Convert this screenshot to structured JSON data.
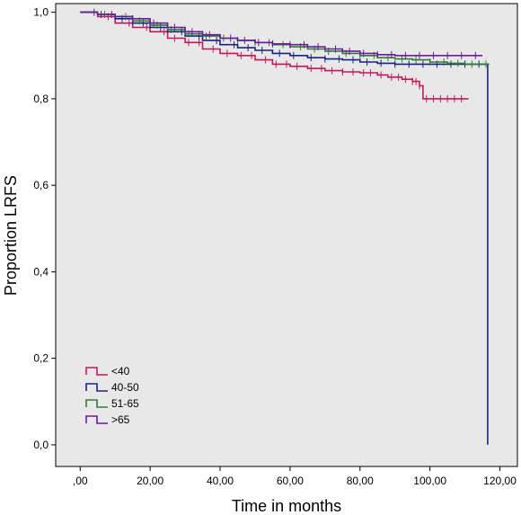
{
  "chart_data": {
    "type": "line",
    "title": "",
    "xlabel": "Time in months",
    "ylabel": "Proportion LRFS",
    "xlim": [
      -7,
      125
    ],
    "ylim": [
      -0.05,
      1.02
    ],
    "x_ticks": [
      0,
      20,
      40,
      60,
      80,
      100,
      120
    ],
    "x_tick_labels": [
      ",00",
      "20,00",
      "40,00",
      "60,00",
      "80,00",
      "100,00",
      "120,00"
    ],
    "y_ticks": [
      0,
      0.2,
      0.4,
      0.6,
      0.8,
      1.0
    ],
    "y_tick_labels": [
      "0,0",
      "0,2",
      "0,4",
      "0,6",
      "0,8",
      "1,0"
    ],
    "grid": false,
    "background": "#e8e8e8",
    "legend_position": "bottom-left",
    "series": [
      {
        "name": "<40",
        "color": "#c2185b",
        "x": [
          0,
          5,
          10,
          15,
          20,
          25,
          30,
          35,
          40,
          45,
          50,
          55,
          60,
          65,
          70,
          75,
          80,
          85,
          88,
          92,
          95,
          97,
          98,
          100,
          102,
          105,
          108,
          111
        ],
        "y": [
          1.0,
          0.99,
          0.975,
          0.965,
          0.955,
          0.94,
          0.93,
          0.915,
          0.905,
          0.9,
          0.89,
          0.88,
          0.875,
          0.87,
          0.865,
          0.862,
          0.86,
          0.855,
          0.85,
          0.845,
          0.84,
          0.83,
          0.8,
          0.8,
          0.8,
          0.8,
          0.8,
          0.8
        ],
        "censor_x": [
          8,
          14,
          19,
          24,
          27,
          31,
          34,
          38,
          42,
          46,
          49,
          53,
          56,
          59,
          62,
          66,
          69,
          72,
          75,
          78,
          81,
          83,
          86,
          89,
          91,
          93,
          95,
          96,
          97,
          99,
          101,
          103,
          105,
          107,
          109
        ]
      },
      {
        "name": "40-50",
        "color": "#1a237e",
        "x": [
          0,
          5,
          10,
          15,
          20,
          25,
          30,
          35,
          40,
          45,
          50,
          55,
          60,
          65,
          70,
          75,
          80,
          85,
          90,
          95,
          100,
          105,
          110,
          116,
          116.5
        ],
        "y": [
          1.0,
          0.995,
          0.985,
          0.975,
          0.965,
          0.955,
          0.945,
          0.935,
          0.925,
          0.918,
          0.912,
          0.905,
          0.9,
          0.895,
          0.892,
          0.89,
          0.885,
          0.882,
          0.88,
          0.88,
          0.88,
          0.88,
          0.88,
          0.88,
          0.0
        ],
        "censor_x": [
          6,
          12,
          18,
          23,
          29,
          34,
          39,
          44,
          48,
          52,
          57,
          61,
          66,
          70,
          74,
          78,
          82,
          86,
          90,
          94,
          98,
          102,
          106,
          110,
          114
        ]
      },
      {
        "name": "51-65",
        "color": "#2e7d32",
        "x": [
          0,
          5,
          10,
          15,
          20,
          25,
          30,
          35,
          40,
          45,
          50,
          55,
          60,
          65,
          70,
          75,
          80,
          85,
          90,
          95,
          100,
          105,
          110,
          115,
          117
        ],
        "y": [
          1.0,
          0.995,
          0.99,
          0.98,
          0.97,
          0.96,
          0.95,
          0.945,
          0.94,
          0.935,
          0.93,
          0.925,
          0.92,
          0.915,
          0.91,
          0.905,
          0.9,
          0.895,
          0.892,
          0.89,
          0.885,
          0.882,
          0.88,
          0.88,
          0.88
        ],
        "censor_x": [
          7,
          13,
          17,
          22,
          26,
          31,
          36,
          41,
          45,
          50,
          54,
          58,
          63,
          67,
          71,
          76,
          80,
          84,
          88,
          92,
          96,
          100,
          104,
          108,
          112,
          116
        ]
      },
      {
        "name": ">65",
        "color": "#6a1b9a",
        "x": [
          0,
          5,
          10,
          15,
          20,
          25,
          30,
          35,
          40,
          45,
          50,
          55,
          60,
          65,
          70,
          75,
          80,
          85,
          90,
          95,
          100,
          105,
          110,
          115
        ],
        "y": [
          1.0,
          0.995,
          0.99,
          0.985,
          0.975,
          0.965,
          0.955,
          0.948,
          0.94,
          0.935,
          0.93,
          0.927,
          0.925,
          0.92,
          0.915,
          0.91,
          0.905,
          0.902,
          0.9,
          0.9,
          0.9,
          0.9,
          0.9,
          0.9
        ],
        "censor_x": [
          4,
          9,
          15,
          21,
          27,
          32,
          37,
          43,
          47,
          51,
          55,
          60,
          64,
          68,
          73,
          77,
          81,
          85,
          89,
          93,
          97,
          101,
          105,
          109,
          113
        ]
      }
    ]
  }
}
